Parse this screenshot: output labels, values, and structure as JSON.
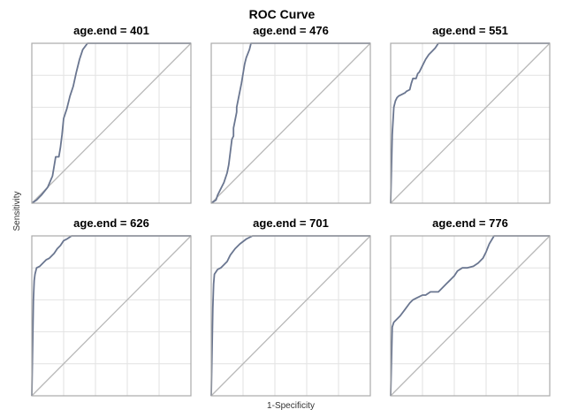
{
  "chart_data": {
    "type": "line",
    "title": "ROC Curve",
    "xlabel": "1-Specificity",
    "ylabel": "Sensitivity",
    "xlim": [
      0,
      1
    ],
    "ylim": [
      0,
      1
    ],
    "grid": true,
    "colors": {
      "curve": "#6a7690",
      "diagonal": "#b8b8b8",
      "grid": "#e2e2e2",
      "frame": "#aaaaaa"
    },
    "panels": [
      {
        "title": "age.end = 401",
        "x": [
          0,
          0.03,
          0.06,
          0.1,
          0.13,
          0.15,
          0.17,
          0.18,
          0.19,
          0.2,
          0.22,
          0.24,
          0.26,
          0.28,
          0.3,
          0.32,
          0.35,
          0.38,
          0.4,
          0.45,
          0.6,
          0.8,
          1.0
        ],
        "y": [
          0,
          0.02,
          0.05,
          0.1,
          0.17,
          0.29,
          0.29,
          0.35,
          0.43,
          0.53,
          0.59,
          0.67,
          0.73,
          0.82,
          0.9,
          0.96,
          1.0,
          1.0,
          1.0,
          1.0,
          1.0,
          1.0,
          1.0
        ]
      },
      {
        "title": "age.end = 476",
        "x": [
          0,
          0.03,
          0.04,
          0.06,
          0.08,
          0.1,
          0.11,
          0.12,
          0.13,
          0.14,
          0.14,
          0.15,
          0.16,
          0.16,
          0.17,
          0.18,
          0.19,
          0.2,
          0.21,
          0.22,
          0.24,
          0.25,
          0.27,
          0.3,
          0.35,
          0.5,
          1.0
        ],
        "y": [
          0,
          0.02,
          0.05,
          0.09,
          0.13,
          0.19,
          0.24,
          0.32,
          0.4,
          0.42,
          0.47,
          0.52,
          0.57,
          0.6,
          0.65,
          0.7,
          0.75,
          0.81,
          0.87,
          0.91,
          0.96,
          1.0,
          1.0,
          1.0,
          1.0,
          1.0,
          1.0
        ]
      },
      {
        "title": "age.end = 551",
        "x": [
          0,
          0.01,
          0.02,
          0.03,
          0.04,
          0.05,
          0.07,
          0.09,
          0.1,
          0.12,
          0.13,
          0.14,
          0.16,
          0.17,
          0.18,
          0.2,
          0.22,
          0.24,
          0.26,
          0.28,
          0.3,
          0.35,
          0.5,
          1.0
        ],
        "y": [
          0,
          0.43,
          0.6,
          0.64,
          0.66,
          0.67,
          0.68,
          0.69,
          0.7,
          0.71,
          0.75,
          0.78,
          0.78,
          0.81,
          0.82,
          0.86,
          0.9,
          0.93,
          0.95,
          0.97,
          1.0,
          1.0,
          1.0,
          1.0
        ]
      },
      {
        "title": "age.end = 626",
        "x": [
          0,
          0.01,
          0.015,
          0.02,
          0.03,
          0.05,
          0.07,
          0.09,
          0.11,
          0.12,
          0.14,
          0.16,
          0.18,
          0.2,
          0.22,
          0.25,
          0.3,
          0.35,
          0.5,
          1.0
        ],
        "y": [
          0,
          0.6,
          0.72,
          0.76,
          0.8,
          0.81,
          0.83,
          0.85,
          0.86,
          0.87,
          0.89,
          0.92,
          0.94,
          0.97,
          0.98,
          1.0,
          1.0,
          1.0,
          1.0,
          1.0
        ]
      },
      {
        "title": "age.end = 701",
        "x": [
          0,
          0.01,
          0.015,
          0.02,
          0.04,
          0.06,
          0.08,
          0.1,
          0.11,
          0.12,
          0.15,
          0.18,
          0.22,
          0.26,
          0.3,
          0.35,
          0.5,
          1.0
        ],
        "y": [
          0,
          0.55,
          0.7,
          0.76,
          0.79,
          0.8,
          0.82,
          0.84,
          0.86,
          0.88,
          0.92,
          0.95,
          0.98,
          1.0,
          1.0,
          1.0,
          1.0,
          1.0
        ]
      },
      {
        "title": "age.end = 776",
        "x": [
          0,
          0.01,
          0.02,
          0.04,
          0.06,
          0.09,
          0.12,
          0.14,
          0.16,
          0.18,
          0.2,
          0.22,
          0.25,
          0.3,
          0.32,
          0.35,
          0.38,
          0.4,
          0.42,
          0.45,
          0.48,
          0.52,
          0.55,
          0.58,
          0.6,
          0.62,
          0.65,
          0.7,
          0.8,
          1.0
        ],
        "y": [
          0,
          0.43,
          0.46,
          0.48,
          0.5,
          0.54,
          0.58,
          0.6,
          0.61,
          0.62,
          0.63,
          0.63,
          0.65,
          0.65,
          0.67,
          0.7,
          0.73,
          0.75,
          0.78,
          0.8,
          0.8,
          0.81,
          0.83,
          0.86,
          0.9,
          0.95,
          1.0,
          1.0,
          1.0,
          1.0
        ]
      }
    ]
  }
}
